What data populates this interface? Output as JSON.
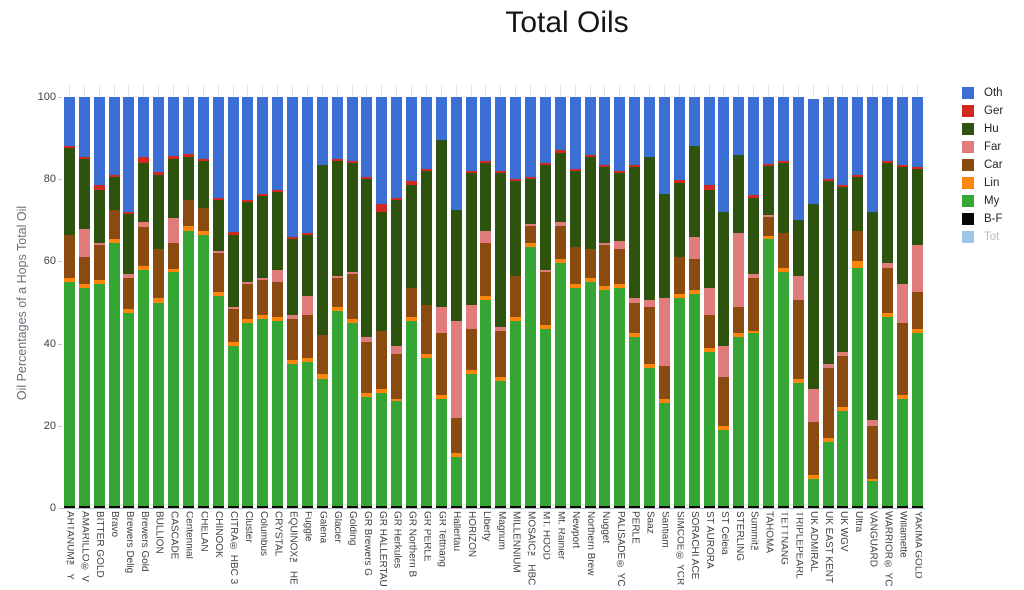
{
  "title": "Total Oils",
  "y_axis": {
    "label": "Oil Percentages of a Hops Total Oil",
    "ticks": [
      "0",
      "20",
      "40",
      "60",
      "80",
      "100"
    ],
    "max": 100
  },
  "legend": {
    "position": "right",
    "items": [
      {
        "label": "Oth",
        "color": "#3B6FD3",
        "muted": false
      },
      {
        "label": "Ger",
        "color": "#CE2A1F",
        "muted": false
      },
      {
        "label": "Hu",
        "color": "#2D530F",
        "muted": false
      },
      {
        "label": "Far",
        "color": "#E07C7C",
        "muted": false
      },
      {
        "label": "Car",
        "color": "#8B4A10",
        "muted": false
      },
      {
        "label": "Lin",
        "color": "#FC860D",
        "muted": false
      },
      {
        "label": "My",
        "color": "#35A534",
        "muted": false
      },
      {
        "label": "B-F",
        "color": "#070707",
        "muted": false
      },
      {
        "label": "Tot",
        "color": "#9FC6E8",
        "muted": true
      }
    ]
  },
  "chart_data": {
    "type": "bar",
    "stacked": true,
    "title": "Total Oils",
    "xlabel": "",
    "ylabel": "Oil Percentages of a Hops Total Oil",
    "ylim": [
      0,
      100
    ],
    "grid": "none",
    "legend_position": "right",
    "stack_order": "bottom-to-top",
    "categories": [
      "AHTANUM™ Y",
      "AMARILLO® V",
      "BITTER GOLD",
      "Bravo",
      "Brewers Delig",
      "Brewers Gold",
      "BULLION",
      "CASCADE",
      "Centennial",
      "CHELAN",
      "CHINOOK",
      "CITRA® HBC 3",
      "Cluster",
      "Columbus",
      "CRYSTAL",
      "EQUINOX™ HE",
      "Fuggle",
      "Galena",
      "Glacier",
      "Golding",
      "GR Brewers G",
      "GR HALLERTAU",
      "GR Herkules",
      "GR Northern B",
      "GR PERLE",
      "GR Tettnang",
      "Hallertau",
      "HORIZON",
      "Liberty",
      "Magnum",
      "MILLENNIUM",
      "MOSAIC™ HBC",
      "MT. HOOD",
      "Mt. Rainier",
      "Newport",
      "Northern Brew",
      "Nugget",
      "PALISADE® YC",
      "PERLE",
      "Saaz",
      "Santiam",
      "SIMCOE® YCR",
      "SORACHI ACE",
      "ST AURORA",
      "ST Celeia",
      "STERLING",
      "Summit™",
      "TAHOMA",
      "TETTNANG",
      "TRIPLEPEARL",
      "UK ADMIRAL",
      "UK EAST KENT",
      "UK WGV",
      "Ultra",
      "VANGUARD",
      "WARRIOR® YC",
      "Willamette",
      "YAKIMA GOLD"
    ],
    "series": [
      {
        "name": "B-F",
        "color": "#070707",
        "values": [
          0.5,
          0.5,
          0.5,
          0.5,
          0.5,
          0.5,
          0.5,
          0.5,
          0.5,
          0.5,
          0.5,
          0.5,
          0.5,
          0.5,
          0.5,
          0.5,
          0.5,
          0.5,
          0.5,
          0.5,
          0.5,
          0.5,
          0.5,
          0.5,
          0.5,
          0.5,
          0.5,
          0.5,
          0.5,
          0.5,
          0.5,
          0.5,
          0.5,
          0.5,
          0.5,
          0.5,
          0.5,
          0.5,
          0.5,
          0.5,
          0.5,
          0.5,
          0.5,
          0.5,
          0.5,
          0.5,
          0.5,
          0.5,
          0.5,
          0.5,
          0.5,
          0.5,
          0.5,
          0.5,
          0.5,
          0.5,
          0.5,
          0.5
        ]
      },
      {
        "name": "My",
        "color": "#35A534",
        "values": [
          54.5,
          53,
          54,
          64,
          47,
          57.5,
          49.5,
          57,
          67,
          66,
          51,
          39,
          44.5,
          45.5,
          45,
          34.5,
          35,
          31,
          47.5,
          44.5,
          26.5,
          27.5,
          25.5,
          45,
          36,
          26,
          12,
          32,
          50,
          30.5,
          45,
          63,
          43,
          59,
          53,
          54.5,
          52.5,
          53,
          41,
          33.5,
          25,
          50.5,
          51.5,
          37.5,
          18.5,
          41,
          42,
          65,
          57,
          30,
          6.5,
          15.5,
          23,
          58,
          6,
          46,
          26,
          42
        ]
      },
      {
        "name": "Lin",
        "color": "#FC860D",
        "values": [
          1,
          1,
          1,
          1,
          1,
          1,
          1,
          0.7,
          1,
          1,
          1,
          1,
          1,
          1,
          1,
          1,
          1,
          1,
          1,
          1,
          1,
          1,
          0.5,
          1,
          1,
          1,
          1,
          1,
          1,
          1,
          1,
          1,
          1,
          1,
          1,
          1,
          1,
          1,
          1,
          1,
          1,
          1,
          1,
          1,
          1,
          1,
          0.5,
          0.7,
          1,
          1,
          1,
          1,
          1,
          1.5,
          0.5,
          1,
          1,
          1
        ]
      },
      {
        "name": "Car",
        "color": "#8B4A10",
        "values": [
          10.5,
          6.5,
          8.5,
          7,
          7.5,
          9.5,
          12,
          6.3,
          6.5,
          5.5,
          9.5,
          8,
          8.5,
          8.5,
          8.5,
          10,
          10.5,
          9.5,
          7,
          11,
          12.5,
          14,
          11,
          7,
          12,
          15,
          8.5,
          10,
          13,
          11,
          10,
          4,
          13,
          8,
          9,
          7,
          10,
          8.5,
          7.5,
          14,
          8,
          9,
          7.5,
          8,
          12,
          6.5,
          13,
          4.5,
          8.5,
          19,
          13,
          17,
          12.5,
          7.5,
          13,
          11,
          17.5,
          9
        ]
      },
      {
        "name": "Far",
        "color": "#E07C7C",
        "values": [
          0,
          7,
          0.5,
          0,
          1,
          1,
          0,
          6,
          0,
          0,
          0.5,
          0.5,
          0.5,
          0.5,
          3,
          1,
          4.5,
          0,
          0.5,
          0.5,
          1,
          0,
          2,
          0,
          0,
          6.5,
          23.5,
          6,
          3,
          1,
          0,
          0.5,
          0.5,
          1,
          0,
          0,
          0.5,
          2,
          1,
          1.5,
          16.5,
          0,
          5.5,
          6.5,
          7.5,
          18,
          1,
          0.5,
          0,
          6,
          8,
          1,
          1,
          0,
          1.5,
          1,
          9.5,
          11.5
        ]
      },
      {
        "name": "Hu",
        "color": "#2D530F",
        "values": [
          21,
          17,
          13,
          8,
          14.5,
          14.5,
          18,
          14.5,
          10.5,
          11.5,
          12.5,
          17.5,
          19.5,
          20,
          19,
          18.5,
          15,
          41.5,
          28,
          26.5,
          38.5,
          29,
          35.5,
          25,
          32.5,
          40.5,
          27,
          32,
          16.5,
          37.5,
          23,
          11,
          25.5,
          17,
          18.5,
          22.5,
          18.5,
          16.5,
          32,
          35,
          25.5,
          18,
          22,
          24,
          32.5,
          19,
          18.5,
          12,
          17,
          13.5,
          45,
          44.5,
          40,
          13,
          50.5,
          24.5,
          28.5,
          18.5
        ]
      },
      {
        "name": "Ger",
        "color": "#CE2A1F",
        "values": [
          0.7,
          0.5,
          1,
          0.5,
          0.5,
          1.5,
          0.7,
          0.7,
          0.7,
          0.5,
          0.5,
          0.7,
          0.5,
          0.5,
          0.5,
          0.5,
          0.5,
          0,
          0.5,
          0.5,
          0.5,
          2,
          0.5,
          1,
          0.5,
          0,
          0,
          0.5,
          0.5,
          0.5,
          0.5,
          0.5,
          0.5,
          0.5,
          0.5,
          0.5,
          0.5,
          0.5,
          0.5,
          0,
          0,
          0.7,
          0,
          1,
          0,
          0,
          0.7,
          0.5,
          0.5,
          0,
          0,
          0.5,
          0.5,
          0.5,
          0,
          0.5,
          0.5,
          0.5
        ]
      },
      {
        "name": "Oth",
        "color": "#3B6FD3",
        "values": [
          11.8,
          14.5,
          21.5,
          19,
          28,
          14.5,
          18.3,
          14.3,
          13.8,
          15,
          24.5,
          32.8,
          25,
          23.5,
          22.5,
          34,
          33,
          16.5,
          15,
          15.5,
          19.5,
          26,
          24.5,
          20.5,
          17.5,
          10.5,
          27.5,
          18,
          15.5,
          18,
          20,
          19.5,
          16,
          13,
          17.5,
          14,
          16.5,
          18,
          16.5,
          14.5,
          23.5,
          20.3,
          12,
          21.5,
          28,
          14,
          23.8,
          16.3,
          15.5,
          30,
          25.5,
          20,
          21.5,
          19,
          28,
          15.5,
          16.5,
          17
        ]
      }
    ]
  }
}
